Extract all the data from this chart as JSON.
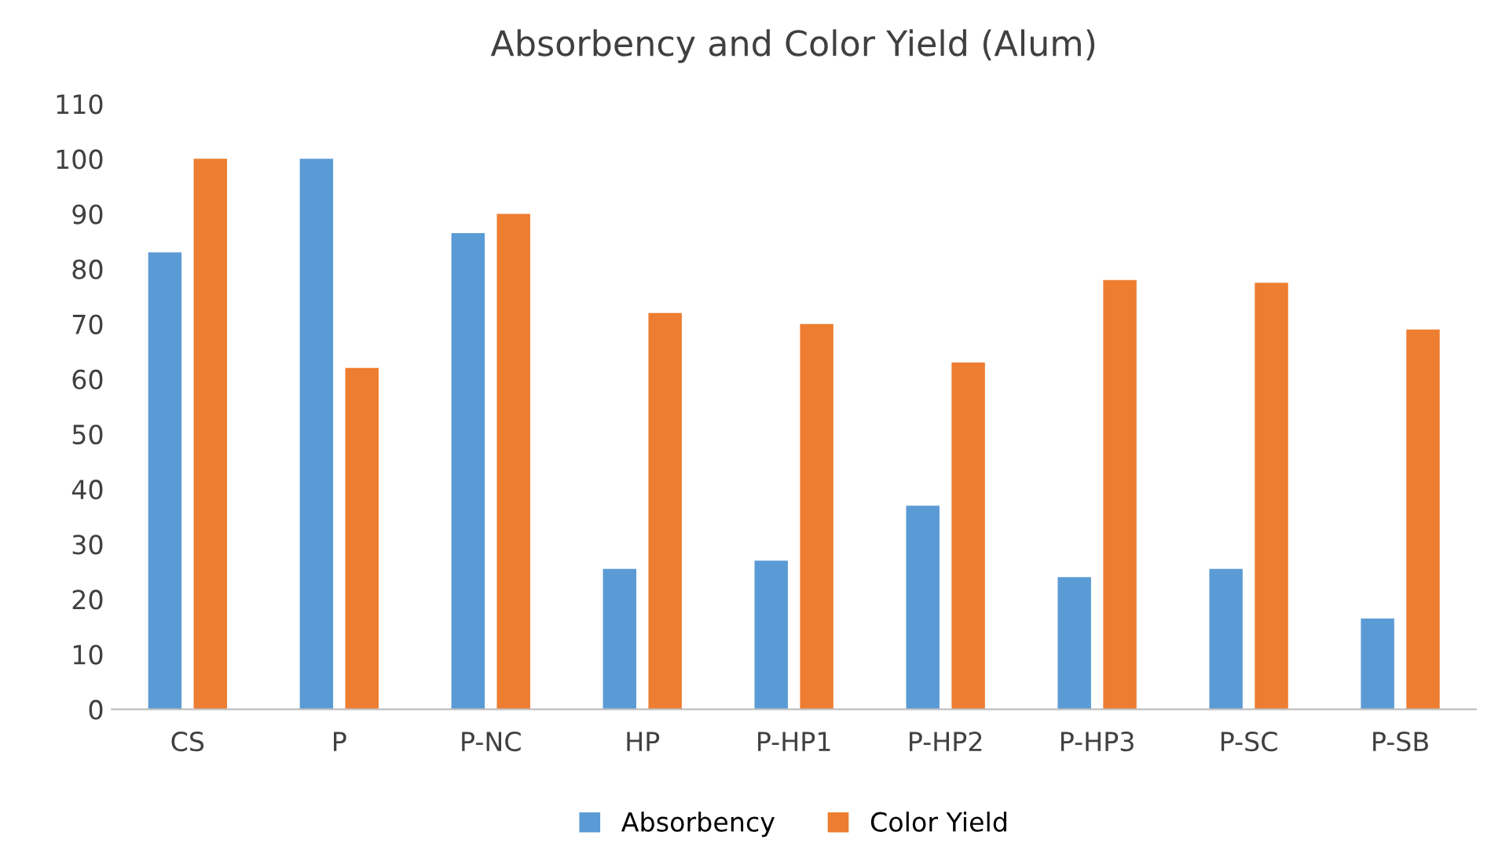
{
  "chart_data": {
    "type": "bar",
    "title": "Absorbency and Color Yield (Alum)",
    "categories": [
      "CS",
      "P",
      "P-NC",
      "HP",
      "P-HP1",
      "P-HP2",
      "P-HP3",
      "P-SC",
      "P-SB"
    ],
    "series": [
      {
        "name": "Absorbency",
        "color": "#5b9bd5",
        "values": [
          83,
          100,
          86.5,
          25.5,
          27,
          37,
          24,
          25.5,
          16.5
        ]
      },
      {
        "name": "Color Yield",
        "color": "#ed7d31",
        "values": [
          100,
          62,
          90,
          72,
          70,
          63,
          78,
          77.5,
          69
        ]
      }
    ],
    "ylim": [
      0,
      110
    ],
    "yticks": [
      0,
      10,
      20,
      30,
      40,
      50,
      60,
      70,
      80,
      90,
      100,
      110
    ],
    "grid": false,
    "legend": "bottom"
  }
}
